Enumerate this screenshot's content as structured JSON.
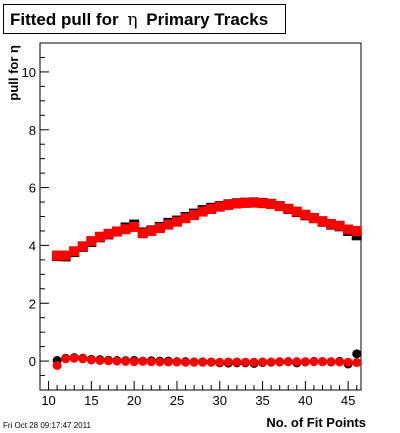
{
  "title": {
    "prefix": "Fitted pull for",
    "symbol": "η",
    "suffix": "Primary Tracks"
  },
  "timestamp": "Fri Oct 28 09:17:47 2011",
  "chart_data": {
    "type": "scatter",
    "title": "Fitted pull for η Primary Tracks",
    "xlabel": "No. of Fit Points",
    "ylabel": "pull for η",
    "xlim": [
      9,
      46.5
    ],
    "ylim": [
      -1,
      11
    ],
    "xticks": [
      10,
      15,
      20,
      25,
      30,
      35,
      40,
      45
    ],
    "yticks": [
      0,
      2,
      4,
      6,
      8,
      10
    ],
    "grid": false,
    "legend": "none",
    "series": [
      {
        "marker": "square",
        "color": "#000000",
        "x": [
          11,
          12,
          13,
          14,
          15,
          16,
          17,
          18,
          19,
          20,
          21,
          22,
          23,
          24,
          25,
          26,
          27,
          28,
          29,
          30,
          31,
          32,
          33,
          34,
          35,
          36,
          37,
          38,
          39,
          40,
          41,
          42,
          43,
          44,
          45,
          46
        ],
        "y": [
          3.63,
          3.62,
          3.77,
          3.95,
          4.12,
          4.28,
          4.38,
          4.48,
          4.62,
          4.72,
          4.45,
          4.52,
          4.64,
          4.78,
          4.86,
          4.98,
          5.1,
          5.22,
          5.3,
          5.36,
          5.42,
          5.46,
          5.48,
          5.49,
          5.47,
          5.44,
          5.36,
          5.26,
          5.15,
          5.04,
          4.94,
          4.82,
          4.72,
          4.66,
          4.5,
          4.35
        ]
      },
      {
        "marker": "square",
        "color": "#ff0000",
        "x": [
          11,
          12,
          13,
          14,
          15,
          16,
          17,
          18,
          19,
          20,
          21,
          22,
          23,
          24,
          25,
          26,
          27,
          28,
          29,
          30,
          31,
          32,
          33,
          34,
          35,
          36,
          37,
          38,
          39,
          40,
          41,
          42,
          43,
          44,
          45,
          46
        ],
        "y": [
          3.65,
          3.65,
          3.8,
          3.97,
          4.15,
          4.3,
          4.4,
          4.48,
          4.56,
          4.64,
          4.42,
          4.5,
          4.6,
          4.72,
          4.82,
          4.94,
          5.05,
          5.17,
          5.26,
          5.34,
          5.4,
          5.45,
          5.47,
          5.48,
          5.46,
          5.43,
          5.36,
          5.27,
          5.17,
          5.06,
          4.95,
          4.84,
          4.74,
          4.68,
          4.55,
          4.5
        ]
      },
      {
        "marker": "circle",
        "color": "#000000",
        "x": [
          11,
          12,
          13,
          14,
          15,
          16,
          17,
          18,
          19,
          20,
          21,
          22,
          23,
          24,
          25,
          26,
          27,
          28,
          29,
          30,
          31,
          32,
          33,
          34,
          35,
          36,
          37,
          38,
          39,
          40,
          41,
          42,
          43,
          44,
          45,
          46
        ],
        "y": [
          0.02,
          0.1,
          0.12,
          0.1,
          0.06,
          0.05,
          0.03,
          0.02,
          0.01,
          0.02,
          0.0,
          0.01,
          0.0,
          0.0,
          -0.02,
          -0.02,
          -0.03,
          -0.03,
          -0.04,
          -0.06,
          -0.07,
          -0.06,
          -0.06,
          -0.08,
          -0.05,
          -0.04,
          -0.03,
          -0.02,
          -0.06,
          -0.03,
          -0.01,
          -0.02,
          -0.03,
          -0.01,
          -0.1,
          0.25
        ]
      },
      {
        "marker": "circle",
        "color": "#ff0000",
        "x": [
          11,
          12,
          13,
          14,
          15,
          16,
          17,
          18,
          19,
          20,
          21,
          22,
          23,
          24,
          25,
          26,
          27,
          28,
          29,
          30,
          31,
          32,
          33,
          34,
          35,
          36,
          37,
          38,
          39,
          40,
          41,
          42,
          43,
          44,
          45,
          46
        ],
        "y": [
          -0.15,
          0.08,
          0.1,
          0.08,
          0.04,
          0.02,
          0.01,
          0.0,
          -0.01,
          -0.02,
          -0.01,
          -0.02,
          -0.03,
          -0.03,
          -0.03,
          -0.04,
          -0.04,
          -0.04,
          -0.03,
          -0.04,
          -0.03,
          -0.03,
          -0.04,
          -0.04,
          -0.03,
          -0.03,
          -0.02,
          -0.02,
          -0.02,
          -0.02,
          -0.02,
          -0.02,
          -0.02,
          -0.03,
          -0.04,
          -0.05
        ]
      }
    ]
  }
}
